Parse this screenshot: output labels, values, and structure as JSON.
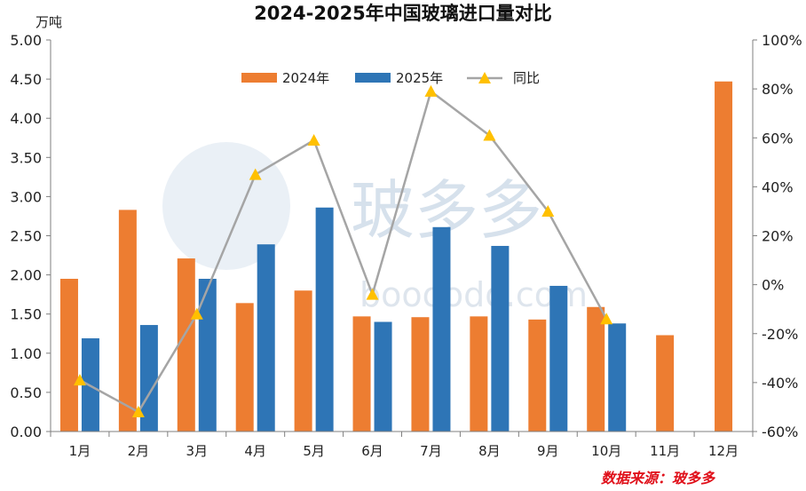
{
  "chart_data": {
    "type": "bar",
    "title": "2024-2025年中国玻璃进口量对比",
    "ylabel_left": "万吨",
    "categories": [
      "1月",
      "2月",
      "3月",
      "4月",
      "5月",
      "6月",
      "7月",
      "8月",
      "9月",
      "10月",
      "11月",
      "12月"
    ],
    "series": [
      {
        "name": "2024年",
        "type": "bar",
        "axis": "left",
        "color": "#ed7d31",
        "values": [
          1.95,
          2.83,
          2.21,
          1.64,
          1.8,
          1.47,
          1.46,
          1.47,
          1.43,
          1.59,
          1.23,
          4.47
        ]
      },
      {
        "name": "2025年",
        "type": "bar",
        "axis": "left",
        "color": "#2e75b6",
        "values": [
          1.19,
          1.36,
          1.95,
          2.39,
          2.86,
          1.4,
          2.61,
          2.37,
          1.86,
          1.38,
          null,
          null
        ]
      },
      {
        "name": "同比",
        "type": "line",
        "axis": "right",
        "color": "#a5a5a5",
        "marker_color": "#ffc000",
        "values": [
          -39,
          -52,
          -12,
          45,
          59,
          -4,
          79,
          61,
          30,
          -14,
          null,
          null
        ]
      }
    ],
    "ylim_left": [
      0,
      5
    ],
    "yticks_left": [
      "0.00",
      "0.50",
      "1.00",
      "1.50",
      "2.00",
      "2.50",
      "3.00",
      "3.50",
      "4.00",
      "4.50",
      "5.00"
    ],
    "ylim_right": [
      -60,
      100
    ],
    "yticks_right": [
      "-60%",
      "-40%",
      "-20%",
      "0%",
      "20%",
      "40%",
      "60%",
      "80%",
      "100%"
    ],
    "legend_position": "top-center",
    "grid": false
  },
  "watermark": {
    "text": "玻多多",
    "url": "boooodo.com"
  },
  "source": "数据来源：玻多多"
}
